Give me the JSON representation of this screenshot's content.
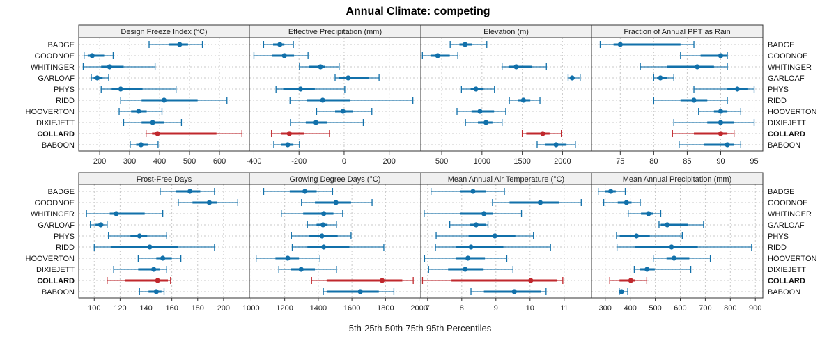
{
  "chart_data": {
    "type": "dotplot-percentile-intervals",
    "title": "Annual Climate: competing",
    "xlabel": "5th-25th-50th-75th-95th Percentiles",
    "grid": true,
    "legend": "none",
    "series_colors": {
      "default": "#1170aa",
      "highlight": "#c0282d"
    },
    "highlight": "COLLARD",
    "categories": [
      "BADGE",
      "GOODNOE",
      "WHITINGER",
      "GARLOAF",
      "PHYS",
      "RIDD",
      "HOOVERTON",
      "DIXIEJETT",
      "COLLARD",
      "BABOON"
    ],
    "panels": [
      {
        "title": "Design Freeze Index (°C)",
        "xlim": [
          130,
          700
        ],
        "ticks": [
          200,
          300,
          400,
          500,
          600
        ],
        "tick_labels": [
          "200",
          "300",
          "400",
          "500",
          "600"
        ],
        "rows": [
          {
            "name": "BADGE",
            "p5": 365,
            "p25": 430,
            "p50": 467,
            "p75": 495,
            "p95": 543
          },
          {
            "name": "GOODNOE",
            "p5": 148,
            "p25": 160,
            "p50": 175,
            "p75": 215,
            "p95": 245
          },
          {
            "name": "WHITINGER",
            "p5": 145,
            "p25": 205,
            "p50": 233,
            "p75": 280,
            "p95": 385
          },
          {
            "name": "GARLOAF",
            "p5": 172,
            "p25": 180,
            "p50": 192,
            "p75": 210,
            "p95": 230
          },
          {
            "name": "PHYS",
            "p5": 205,
            "p25": 240,
            "p50": 270,
            "p75": 343,
            "p95": 455
          },
          {
            "name": "RIDD",
            "p5": 270,
            "p25": 340,
            "p50": 415,
            "p75": 527,
            "p95": 625
          },
          {
            "name": "HOOVERTON",
            "p5": 265,
            "p25": 305,
            "p50": 330,
            "p75": 357,
            "p95": 408
          },
          {
            "name": "DIXIEJETT",
            "p5": 280,
            "p25": 340,
            "p50": 377,
            "p75": 415,
            "p95": 473
          },
          {
            "name": "COLLARD",
            "p5": 355,
            "p25": 375,
            "p50": 393,
            "p75": 590,
            "p95": 675
          },
          {
            "name": "BABOON",
            "p5": 302,
            "p25": 322,
            "p50": 338,
            "p75": 362,
            "p95": 395
          }
        ]
      },
      {
        "title": "Effective Precipitation (mm)",
        "xlim": [
          -420,
          340
        ],
        "ticks": [
          -400,
          -200,
          0,
          200
        ],
        "tick_labels": [
          "-400",
          "-200",
          "0",
          "200"
        ],
        "rows": [
          {
            "name": "BADGE",
            "p5": -357,
            "p25": -315,
            "p50": -285,
            "p75": -265,
            "p95": -225
          },
          {
            "name": "GOODNOE",
            "p5": -400,
            "p25": -318,
            "p50": -265,
            "p75": -222,
            "p95": -160
          },
          {
            "name": "WHITINGER",
            "p5": -198,
            "p25": -155,
            "p50": -105,
            "p75": -85,
            "p95": -22
          },
          {
            "name": "GARLOAF",
            "p5": -40,
            "p25": -25,
            "p50": 18,
            "p75": 110,
            "p95": 155
          },
          {
            "name": "PHYS",
            "p5": -302,
            "p25": -270,
            "p50": -193,
            "p75": -130,
            "p95": 3
          },
          {
            "name": "RIDD",
            "p5": -240,
            "p25": -165,
            "p50": -95,
            "p75": 28,
            "p95": 305
          },
          {
            "name": "HOOVERTON",
            "p5": -122,
            "p25": -40,
            "p50": -5,
            "p75": 38,
            "p95": 123
          },
          {
            "name": "DIXIEJETT",
            "p5": -238,
            "p25": -170,
            "p50": -125,
            "p75": -75,
            "p95": 85
          },
          {
            "name": "COLLARD",
            "p5": -322,
            "p25": -280,
            "p50": -243,
            "p75": -178,
            "p95": -65
          },
          {
            "name": "BABOON",
            "p5": -312,
            "p25": -280,
            "p50": -250,
            "p75": -225,
            "p95": -198
          }
        ]
      },
      {
        "title": "Elevation (m)",
        "xlim": [
          240,
          2360
        ],
        "ticks": [
          500,
          1000,
          1500,
          2000
        ],
        "tick_labels": [
          "500",
          "1000",
          "1500",
          "2000"
        ],
        "rows": [
          {
            "name": "BADGE",
            "p5": 605,
            "p25": 720,
            "p50": 790,
            "p75": 880,
            "p95": 1060
          },
          {
            "name": "GOODNOE",
            "p5": 260,
            "p25": 360,
            "p50": 450,
            "p75": 600,
            "p95": 700
          },
          {
            "name": "WHITINGER",
            "p5": 1250,
            "p25": 1330,
            "p50": 1425,
            "p75": 1620,
            "p95": 1800
          },
          {
            "name": "GARLOAF",
            "p5": 2070,
            "p25": 2090,
            "p50": 2120,
            "p75": 2150,
            "p95": 2220
          },
          {
            "name": "PHYS",
            "p5": 745,
            "p25": 860,
            "p50": 925,
            "p75": 1020,
            "p95": 1155
          },
          {
            "name": "RIDD",
            "p5": 1340,
            "p25": 1450,
            "p50": 1515,
            "p75": 1600,
            "p95": 1720
          },
          {
            "name": "HOOVERTON",
            "p5": 690,
            "p25": 870,
            "p50": 975,
            "p75": 1150,
            "p95": 1295
          },
          {
            "name": "DIXIEJETT",
            "p5": 795,
            "p25": 950,
            "p50": 1050,
            "p75": 1130,
            "p95": 1250
          },
          {
            "name": "COLLARD",
            "p5": 1500,
            "p25": 1550,
            "p50": 1755,
            "p75": 1840,
            "p95": 1985
          },
          {
            "name": "BABOON",
            "p5": 1685,
            "p25": 1780,
            "p50": 1920,
            "p75": 2050,
            "p95": 2160
          }
        ]
      },
      {
        "title": "Fraction of Annual PPT as Rain",
        "xlim": [
          70.7,
          96.3
        ],
        "ticks": [
          75,
          80,
          85,
          90,
          95
        ],
        "tick_labels": [
          "75",
          "80",
          "85",
          "90",
          "95"
        ],
        "rows": [
          {
            "name": "BADGE",
            "p5": 72,
            "p25": 74,
            "p50": 75,
            "p75": 84,
            "p95": 86
          },
          {
            "name": "GOODNOE",
            "p5": 84,
            "p25": 87,
            "p50": 90,
            "p75": 91,
            "p95": 91
          },
          {
            "name": "WHITINGER",
            "p5": 78,
            "p25": 82,
            "p50": 86.5,
            "p75": 89,
            "p95": 91
          },
          {
            "name": "GARLOAF",
            "p5": 80,
            "p25": 80.5,
            "p50": 81,
            "p75": 82,
            "p95": 83
          },
          {
            "name": "PHYS",
            "p5": 86,
            "p25": 91,
            "p50": 92.5,
            "p75": 94,
            "p95": 95
          },
          {
            "name": "RIDD",
            "p5": 80,
            "p25": 84,
            "p50": 86,
            "p75": 88,
            "p95": 91
          },
          {
            "name": "HOOVERTON",
            "p5": 86.7,
            "p25": 89,
            "p50": 90,
            "p75": 91,
            "p95": 93
          },
          {
            "name": "DIXIEJETT",
            "p5": 83,
            "p25": 88,
            "p50": 90,
            "p75": 92,
            "p95": 95
          },
          {
            "name": "COLLARD",
            "p5": 82.8,
            "p25": 86,
            "p50": 90,
            "p75": 91,
            "p95": 92
          },
          {
            "name": "BABOON",
            "p5": 83.8,
            "p25": 87.5,
            "p50": 91,
            "p75": 92,
            "p95": 93
          }
        ]
      },
      {
        "title": "Frost-Free Days",
        "xlim": [
          88,
          220
        ],
        "ticks": [
          100,
          120,
          140,
          160,
          180,
          200
        ],
        "tick_labels": [
          "100",
          "120",
          "140",
          "160",
          "180",
          "200"
        ],
        "rows": [
          {
            "name": "BADGE",
            "p5": 151,
            "p25": 163,
            "p50": 174,
            "p75": 182,
            "p95": 193
          },
          {
            "name": "GOODNOE",
            "p5": 165,
            "p25": 176,
            "p50": 189,
            "p75": 195,
            "p95": 211
          },
          {
            "name": "WHITINGER",
            "p5": 94,
            "p25": 112,
            "p50": 117,
            "p75": 139,
            "p95": 153
          },
          {
            "name": "GARLOAF",
            "p5": 97,
            "p25": 101,
            "p50": 105,
            "p75": 107,
            "p95": 110
          },
          {
            "name": "PHYS",
            "p5": 111,
            "p25": 128,
            "p50": 135,
            "p75": 141,
            "p95": 156
          },
          {
            "name": "RIDD",
            "p5": 100,
            "p25": 113,
            "p50": 143,
            "p75": 165,
            "p95": 193
          },
          {
            "name": "HOOVERTON",
            "p5": 134,
            "p25": 148,
            "p50": 153,
            "p75": 160,
            "p95": 167
          },
          {
            "name": "DIXIEJETT",
            "p5": 115,
            "p25": 134,
            "p50": 146,
            "p75": 151,
            "p95": 156
          },
          {
            "name": "COLLARD",
            "p5": 110,
            "p25": 124,
            "p50": 149,
            "p75": 157,
            "p95": 159
          },
          {
            "name": "BABOON",
            "p5": 135,
            "p25": 142,
            "p50": 148,
            "p75": 152,
            "p95": 154
          }
        ]
      },
      {
        "title": "Growing Degree Days (°C)",
        "xlim": [
          990,
          2010
        ],
        "ticks": [
          1000,
          1200,
          1400,
          1600,
          1800,
          2000
        ],
        "tick_labels": [
          "1000",
          "1200",
          "1400",
          "1600",
          "1800",
          "2000"
        ],
        "rows": [
          {
            "name": "BADGE",
            "p5": 1075,
            "p25": 1230,
            "p50": 1320,
            "p75": 1390,
            "p95": 1485
          },
          {
            "name": "GOODNOE",
            "p5": 1300,
            "p25": 1380,
            "p50": 1505,
            "p75": 1595,
            "p95": 1720
          },
          {
            "name": "WHITINGER",
            "p5": 1180,
            "p25": 1310,
            "p50": 1432,
            "p75": 1490,
            "p95": 1545
          },
          {
            "name": "GARLOAF",
            "p5": 1335,
            "p25": 1390,
            "p50": 1428,
            "p75": 1455,
            "p95": 1508
          },
          {
            "name": "PHYS",
            "p5": 1240,
            "p25": 1345,
            "p50": 1422,
            "p75": 1515,
            "p95": 1595
          },
          {
            "name": "RIDD",
            "p5": 1245,
            "p25": 1335,
            "p50": 1432,
            "p75": 1585,
            "p95": 1790
          },
          {
            "name": "HOOVERTON",
            "p5": 1030,
            "p25": 1145,
            "p50": 1218,
            "p75": 1285,
            "p95": 1410
          },
          {
            "name": "DIXIEJETT",
            "p5": 1165,
            "p25": 1235,
            "p50": 1298,
            "p75": 1380,
            "p95": 1508
          },
          {
            "name": "COLLARD",
            "p5": 1360,
            "p25": 1450,
            "p50": 1780,
            "p75": 1900,
            "p95": 1965
          },
          {
            "name": "BABOON",
            "p5": 1430,
            "p25": 1450,
            "p50": 1650,
            "p75": 1760,
            "p95": 1850
          }
        ]
      },
      {
        "title": "Mean Annual Air Temperature (°C)",
        "xlim": [
          6.8,
          11.8
        ],
        "ticks": [
          7,
          8,
          9,
          10,
          11
        ],
        "tick_labels": [
          "7",
          "8",
          "9",
          "10",
          "11"
        ],
        "rows": [
          {
            "name": "BADGE",
            "p5": 7.1,
            "p25": 7.95,
            "p50": 8.33,
            "p75": 8.7,
            "p95": 9.25
          },
          {
            "name": "GOODNOE",
            "p5": 8.9,
            "p25": 9.4,
            "p50": 10.3,
            "p75": 10.85,
            "p95": 11.5
          },
          {
            "name": "WHITINGER",
            "p5": 6.9,
            "p25": 7.95,
            "p50": 8.65,
            "p75": 8.92,
            "p95": 9.75
          },
          {
            "name": "GARLOAF",
            "p5": 7.65,
            "p25": 8.25,
            "p50": 8.42,
            "p75": 8.7,
            "p95": 8.77
          },
          {
            "name": "PHYS",
            "p5": 7.25,
            "p25": 8.2,
            "p50": 8.97,
            "p75": 9.57,
            "p95": 10.1
          },
          {
            "name": "RIDD",
            "p5": 7.23,
            "p25": 7.82,
            "p50": 8.27,
            "p75": 9.22,
            "p95": 10.6
          },
          {
            "name": "HOOVERTON",
            "p5": 6.91,
            "p25": 7.82,
            "p50": 8.18,
            "p75": 8.68,
            "p95": 9.32
          },
          {
            "name": "DIXIEJETT",
            "p5": 7.03,
            "p25": 7.6,
            "p50": 8.1,
            "p75": 8.64,
            "p95": 9.5
          },
          {
            "name": "COLLARD",
            "p5": 6.85,
            "p25": 7.7,
            "p50": 10.02,
            "p75": 10.8,
            "p95": 10.96
          },
          {
            "name": "BABOON",
            "p5": 8.27,
            "p25": 8.65,
            "p50": 9.54,
            "p75": 10.33,
            "p95": 10.47
          }
        ]
      },
      {
        "title": "Mean Annual Precipitation (mm)",
        "xlim": [
          245,
          930
        ],
        "ticks": [
          300,
          400,
          500,
          600,
          700,
          800,
          900
        ],
        "tick_labels": [
          "300",
          "400",
          "500",
          "600",
          "700",
          "800",
          "900"
        ],
        "rows": [
          {
            "name": "BADGE",
            "p5": 272,
            "p25": 300,
            "p50": 322,
            "p75": 342,
            "p95": 380
          },
          {
            "name": "GOODNOE",
            "p5": 294,
            "p25": 350,
            "p50": 385,
            "p75": 405,
            "p95": 440
          },
          {
            "name": "WHITINGER",
            "p5": 392,
            "p25": 443,
            "p50": 473,
            "p75": 492,
            "p95": 522
          },
          {
            "name": "GARLOAF",
            "p5": 515,
            "p25": 522,
            "p50": 548,
            "p75": 630,
            "p95": 693
          },
          {
            "name": "PHYS",
            "p5": 345,
            "p25": 358,
            "p50": 425,
            "p75": 478,
            "p95": 608
          },
          {
            "name": "RIDD",
            "p5": 347,
            "p25": 420,
            "p50": 565,
            "p75": 670,
            "p95": 885
          },
          {
            "name": "HOOVERTON",
            "p5": 492,
            "p25": 545,
            "p50": 575,
            "p75": 636,
            "p95": 720
          },
          {
            "name": "DIXIEJETT",
            "p5": 416,
            "p25": 440,
            "p50": 467,
            "p75": 498,
            "p95": 642
          },
          {
            "name": "COLLARD",
            "p5": 318,
            "p25": 357,
            "p50": 402,
            "p75": 418,
            "p95": 466
          },
          {
            "name": "BABOON",
            "p5": 356,
            "p25": 360,
            "p50": 365,
            "p75": 372,
            "p95": 390
          }
        ]
      }
    ]
  }
}
